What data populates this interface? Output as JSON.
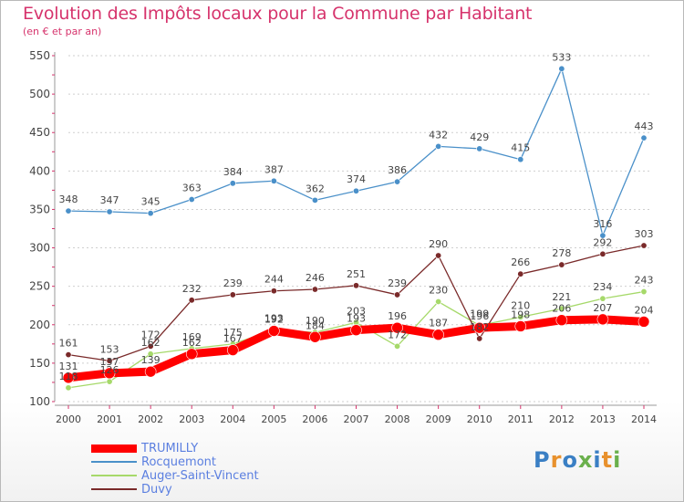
{
  "title": "Evolution des Impôts locaux pour la Commune par Habitant",
  "subtitle": "(en € et par an)",
  "logo_text": "Proxiti",
  "chart_data": {
    "type": "line",
    "title": "Evolution des Impôts locaux pour la Commune par Habitant",
    "subtitle": "(en € et par an)",
    "xlabel": "",
    "ylabel": "",
    "x": [
      "2000",
      "2001",
      "2002",
      "2003",
      "2004",
      "2005",
      "2006",
      "2007",
      "2008",
      "2009",
      "2010",
      "2011",
      "2012",
      "2013",
      "2014"
    ],
    "ylim": [
      100,
      550
    ],
    "yticks": [
      100,
      150,
      200,
      250,
      300,
      350,
      400,
      450,
      500,
      550
    ],
    "grid": "horizontal-dotted",
    "legend_position": "bottom-left",
    "series": [
      {
        "name": "TRUMILLY",
        "color": "#ff0000",
        "values": [
          131,
          137,
          139,
          162,
          167,
          192,
          184,
          193,
          196,
          187,
          196,
          198,
          206,
          207,
          204
        ],
        "labels": [
          "131",
          "137",
          "139",
          "162",
          "167",
          "192",
          "184",
          "193",
          "196",
          "187",
          "196",
          "198",
          "206",
          "207",
          "204"
        ]
      },
      {
        "name": "Rocquemont",
        "color": "#4a90c9",
        "values": [
          348,
          347,
          345,
          363,
          384,
          387,
          362,
          374,
          386,
          432,
          429,
          415,
          533,
          316,
          443
        ],
        "labels": [
          "348",
          "347",
          "345",
          "363",
          "384",
          "387",
          "362",
          "374",
          "386",
          "432",
          "429",
          "415",
          "533",
          "316",
          "443"
        ]
      },
      {
        "name": "Auger-Saint-Vincent",
        "color": "#a6d96a",
        "values": [
          118,
          126,
          162,
          169,
          175,
          193,
          190,
          203,
          172,
          230,
          199,
          210,
          221,
          234,
          243
        ],
        "labels": [
          "118",
          "126",
          "162",
          "169",
          "175",
          "193",
          "190",
          "203",
          "172",
          "230",
          "199",
          "210",
          "221",
          "234",
          "243"
        ]
      },
      {
        "name": "Duvy",
        "color": "#7a2a2a",
        "values": [
          161,
          153,
          172,
          232,
          239,
          244,
          246,
          251,
          239,
          290,
          182,
          266,
          278,
          292,
          303
        ],
        "labels": [
          "161",
          "153",
          "172",
          "232",
          "239",
          "244",
          "246",
          "251",
          "239",
          "290",
          "182",
          "266",
          "278",
          "292",
          "303"
        ]
      }
    ]
  }
}
